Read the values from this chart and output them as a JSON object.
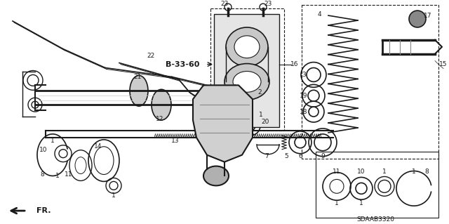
{
  "fig_width": 6.4,
  "fig_height": 3.19,
  "dpi": 100,
  "bg": "#ffffff",
  "diagram_id": "SDAAB3320",
  "label_fontsize": 7.0,
  "small_fontsize": 6.0
}
